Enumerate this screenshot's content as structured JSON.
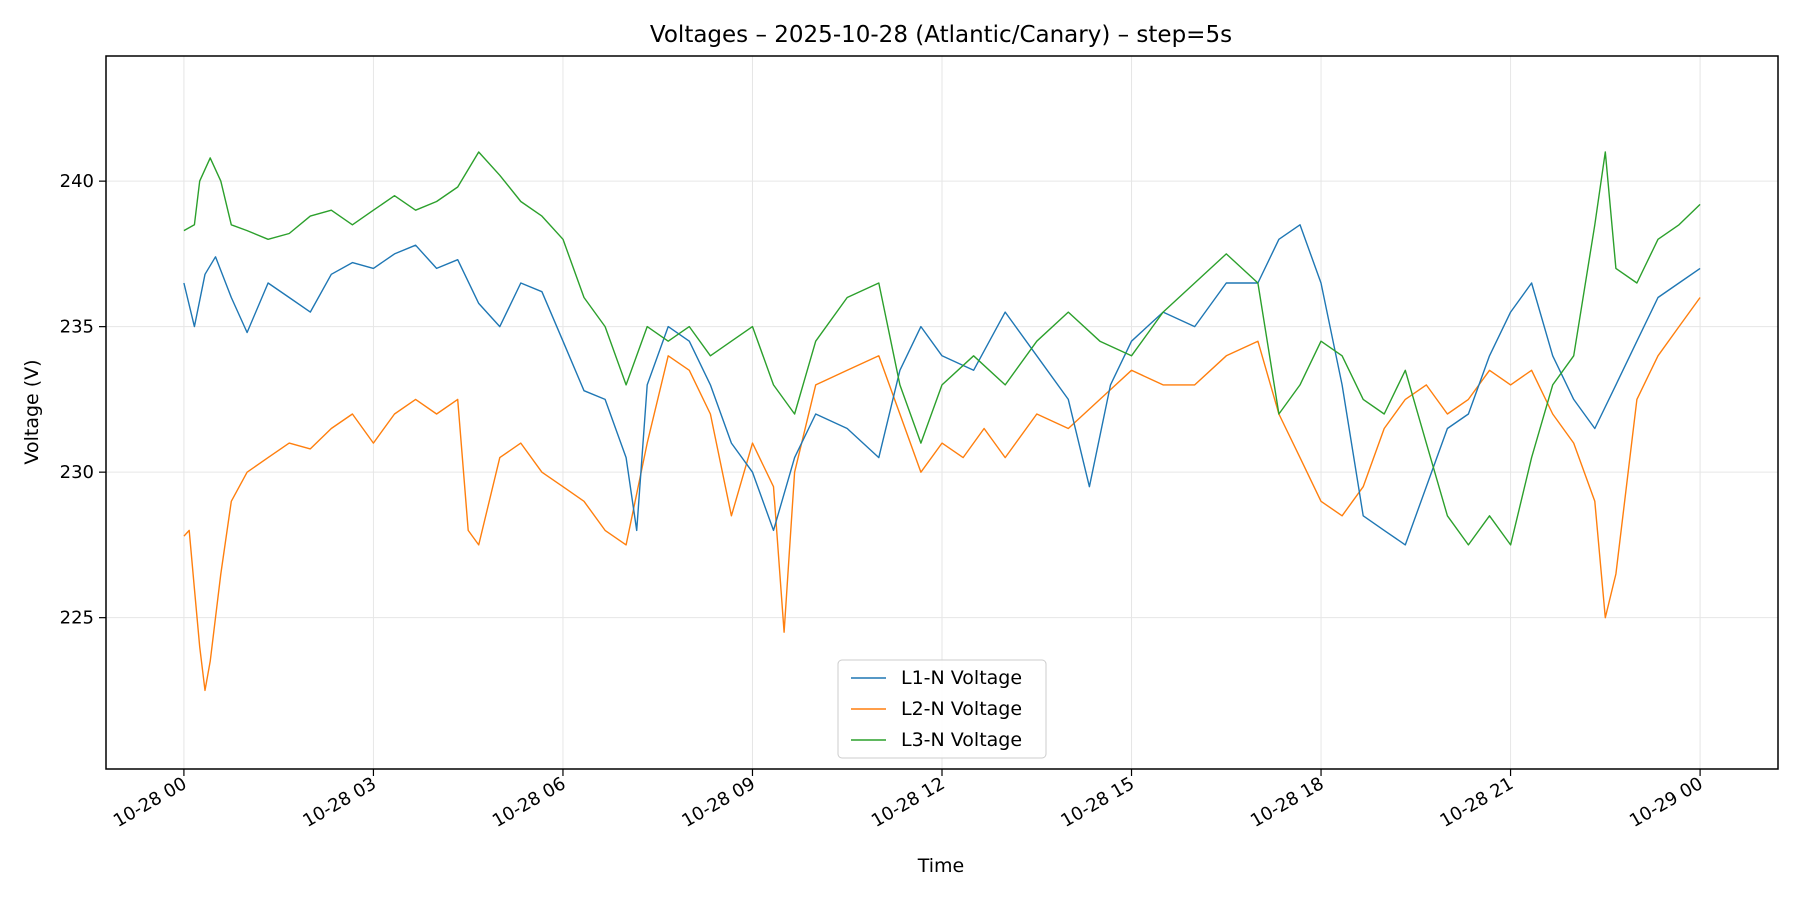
{
  "chart_data": {
    "type": "line",
    "title": "Voltages – 2025-10-28 (Atlantic/Canary) – step=5s",
    "xlabel": "Time",
    "ylabel": "Voltage (V)",
    "xlim": [
      "2025-10-27 22:46",
      "2025-10-29 01:14"
    ],
    "ylim": [
      219.8,
      244.3
    ],
    "grid": true,
    "legend_position": "bottom-center",
    "x_ticks": [
      {
        "t": "2025-10-28 00:00",
        "label": "10-28 00"
      },
      {
        "t": "2025-10-28 03:00",
        "label": "10-28 03"
      },
      {
        "t": "2025-10-28 06:00",
        "label": "10-28 06"
      },
      {
        "t": "2025-10-28 09:00",
        "label": "10-28 09"
      },
      {
        "t": "2025-10-28 12:00",
        "label": "10-28 12"
      },
      {
        "t": "2025-10-28 15:00",
        "label": "10-28 15"
      },
      {
        "t": "2025-10-28 18:00",
        "label": "10-28 18"
      },
      {
        "t": "2025-10-28 21:00",
        "label": "10-28 21"
      },
      {
        "t": "2025-10-29 00:00",
        "label": "10-29 00"
      }
    ],
    "y_ticks": [
      {
        "v": 225,
        "label": "225"
      },
      {
        "v": 230,
        "label": "230"
      },
      {
        "v": 235,
        "label": "235"
      },
      {
        "v": 240,
        "label": "240"
      }
    ],
    "series": [
      {
        "name": "L1-N Voltage",
        "color": "#1f77b4",
        "points": [
          [
            "2025-10-28 00:00",
            236.5
          ],
          [
            "2025-10-28 00:10",
            235.0
          ],
          [
            "2025-10-28 00:20",
            236.8
          ],
          [
            "2025-10-28 00:30",
            237.4
          ],
          [
            "2025-10-28 00:45",
            236.0
          ],
          [
            "2025-10-28 01:00",
            234.8
          ],
          [
            "2025-10-28 01:20",
            236.5
          ],
          [
            "2025-10-28 01:40",
            236.0
          ],
          [
            "2025-10-28 02:00",
            235.5
          ],
          [
            "2025-10-28 02:20",
            236.8
          ],
          [
            "2025-10-28 02:40",
            237.2
          ],
          [
            "2025-10-28 03:00",
            237.0
          ],
          [
            "2025-10-28 03:20",
            237.5
          ],
          [
            "2025-10-28 03:40",
            237.8
          ],
          [
            "2025-10-28 04:00",
            237.0
          ],
          [
            "2025-10-28 04:20",
            237.3
          ],
          [
            "2025-10-28 04:40",
            235.8
          ],
          [
            "2025-10-28 05:00",
            235.0
          ],
          [
            "2025-10-28 05:20",
            236.5
          ],
          [
            "2025-10-28 05:40",
            236.2
          ],
          [
            "2025-10-28 06:00",
            234.5
          ],
          [
            "2025-10-28 06:20",
            232.8
          ],
          [
            "2025-10-28 06:40",
            232.5
          ],
          [
            "2025-10-28 07:00",
            230.5
          ],
          [
            "2025-10-28 07:10",
            228.0
          ],
          [
            "2025-10-28 07:20",
            233.0
          ],
          [
            "2025-10-28 07:40",
            235.0
          ],
          [
            "2025-10-28 08:00",
            234.5
          ],
          [
            "2025-10-28 08:20",
            233.0
          ],
          [
            "2025-10-28 08:40",
            231.0
          ],
          [
            "2025-10-28 09:00",
            230.0
          ],
          [
            "2025-10-28 09:20",
            228.0
          ],
          [
            "2025-10-28 09:40",
            230.5
          ],
          [
            "2025-10-28 10:00",
            232.0
          ],
          [
            "2025-10-28 10:30",
            231.5
          ],
          [
            "2025-10-28 11:00",
            230.5
          ],
          [
            "2025-10-28 11:20",
            233.5
          ],
          [
            "2025-10-28 11:40",
            235.0
          ],
          [
            "2025-10-28 12:00",
            234.0
          ],
          [
            "2025-10-28 12:30",
            233.5
          ],
          [
            "2025-10-28 13:00",
            235.5
          ],
          [
            "2025-10-28 13:30",
            234.0
          ],
          [
            "2025-10-28 14:00",
            232.5
          ],
          [
            "2025-10-28 14:20",
            229.5
          ],
          [
            "2025-10-28 14:40",
            233.0
          ],
          [
            "2025-10-28 15:00",
            234.5
          ],
          [
            "2025-10-28 15:30",
            235.5
          ],
          [
            "2025-10-28 16:00",
            235.0
          ],
          [
            "2025-10-28 16:30",
            236.5
          ],
          [
            "2025-10-28 17:00",
            236.5
          ],
          [
            "2025-10-28 17:20",
            238.0
          ],
          [
            "2025-10-28 17:40",
            238.5
          ],
          [
            "2025-10-28 18:00",
            236.5
          ],
          [
            "2025-10-28 18:20",
            233.0
          ],
          [
            "2025-10-28 18:40",
            228.5
          ],
          [
            "2025-10-28 19:00",
            228.0
          ],
          [
            "2025-10-28 19:20",
            227.5
          ],
          [
            "2025-10-28 19:40",
            229.5
          ],
          [
            "2025-10-28 20:00",
            231.5
          ],
          [
            "2025-10-28 20:20",
            232.0
          ],
          [
            "2025-10-28 20:40",
            234.0
          ],
          [
            "2025-10-28 21:00",
            235.5
          ],
          [
            "2025-10-28 21:20",
            236.5
          ],
          [
            "2025-10-28 21:40",
            234.0
          ],
          [
            "2025-10-28 22:00",
            232.5
          ],
          [
            "2025-10-28 22:20",
            231.5
          ],
          [
            "2025-10-28 22:40",
            233.0
          ],
          [
            "2025-10-28 23:00",
            234.5
          ],
          [
            "2025-10-28 23:20",
            236.0
          ],
          [
            "2025-10-28 23:40",
            236.5
          ],
          [
            "2025-10-29 00:00",
            237.0
          ]
        ]
      },
      {
        "name": "L2-N Voltage",
        "color": "#ff7f0e",
        "points": [
          [
            "2025-10-28 00:00",
            227.8
          ],
          [
            "2025-10-28 00:05",
            228.0
          ],
          [
            "2025-10-28 00:10",
            226.0
          ],
          [
            "2025-10-28 00:15",
            224.0
          ],
          [
            "2025-10-28 00:20",
            222.5
          ],
          [
            "2025-10-28 00:25",
            223.5
          ],
          [
            "2025-10-28 00:35",
            226.5
          ],
          [
            "2025-10-28 00:45",
            229.0
          ],
          [
            "2025-10-28 01:00",
            230.0
          ],
          [
            "2025-10-28 01:20",
            230.5
          ],
          [
            "2025-10-28 01:40",
            231.0
          ],
          [
            "2025-10-28 02:00",
            230.8
          ],
          [
            "2025-10-28 02:20",
            231.5
          ],
          [
            "2025-10-28 02:40",
            232.0
          ],
          [
            "2025-10-28 03:00",
            231.0
          ],
          [
            "2025-10-28 03:20",
            232.0
          ],
          [
            "2025-10-28 03:40",
            232.5
          ],
          [
            "2025-10-28 04:00",
            232.0
          ],
          [
            "2025-10-28 04:20",
            232.5
          ],
          [
            "2025-10-28 04:30",
            228.0
          ],
          [
            "2025-10-28 04:40",
            227.5
          ],
          [
            "2025-10-28 05:00",
            230.5
          ],
          [
            "2025-10-28 05:20",
            231.0
          ],
          [
            "2025-10-28 05:40",
            230.0
          ],
          [
            "2025-10-28 06:00",
            229.5
          ],
          [
            "2025-10-28 06:20",
            229.0
          ],
          [
            "2025-10-28 06:40",
            228.0
          ],
          [
            "2025-10-28 07:00",
            227.5
          ],
          [
            "2025-10-28 07:20",
            231.0
          ],
          [
            "2025-10-28 07:40",
            234.0
          ],
          [
            "2025-10-28 08:00",
            233.5
          ],
          [
            "2025-10-28 08:20",
            232.0
          ],
          [
            "2025-10-28 08:40",
            228.5
          ],
          [
            "2025-10-28 09:00",
            231.0
          ],
          [
            "2025-10-28 09:20",
            229.5
          ],
          [
            "2025-10-28 09:30",
            224.5
          ],
          [
            "2025-10-28 09:40",
            230.0
          ],
          [
            "2025-10-28 10:00",
            233.0
          ],
          [
            "2025-10-28 10:30",
            233.5
          ],
          [
            "2025-10-28 11:00",
            234.0
          ],
          [
            "2025-10-28 11:20",
            232.0
          ],
          [
            "2025-10-28 11:40",
            230.0
          ],
          [
            "2025-10-28 12:00",
            231.0
          ],
          [
            "2025-10-28 12:20",
            230.5
          ],
          [
            "2025-10-28 12:40",
            231.5
          ],
          [
            "2025-10-28 13:00",
            230.5
          ],
          [
            "2025-10-28 13:30",
            232.0
          ],
          [
            "2025-10-28 14:00",
            231.5
          ],
          [
            "2025-10-28 14:30",
            232.5
          ],
          [
            "2025-10-28 15:00",
            233.5
          ],
          [
            "2025-10-28 15:30",
            233.0
          ],
          [
            "2025-10-28 16:00",
            233.0
          ],
          [
            "2025-10-28 16:30",
            234.0
          ],
          [
            "2025-10-28 17:00",
            234.5
          ],
          [
            "2025-10-28 17:20",
            232.0
          ],
          [
            "2025-10-28 17:40",
            230.5
          ],
          [
            "2025-10-28 18:00",
            229.0
          ],
          [
            "2025-10-28 18:20",
            228.5
          ],
          [
            "2025-10-28 18:40",
            229.5
          ],
          [
            "2025-10-28 19:00",
            231.5
          ],
          [
            "2025-10-28 19:20",
            232.5
          ],
          [
            "2025-10-28 19:40",
            233.0
          ],
          [
            "2025-10-28 20:00",
            232.0
          ],
          [
            "2025-10-28 20:20",
            232.5
          ],
          [
            "2025-10-28 20:40",
            233.5
          ],
          [
            "2025-10-28 21:00",
            233.0
          ],
          [
            "2025-10-28 21:20",
            233.5
          ],
          [
            "2025-10-28 21:40",
            232.0
          ],
          [
            "2025-10-28 22:00",
            231.0
          ],
          [
            "2025-10-28 22:20",
            229.0
          ],
          [
            "2025-10-28 22:30",
            225.0
          ],
          [
            "2025-10-28 22:40",
            226.5
          ],
          [
            "2025-10-28 23:00",
            232.5
          ],
          [
            "2025-10-28 23:20",
            234.0
          ],
          [
            "2025-10-28 23:40",
            235.0
          ],
          [
            "2025-10-29 00:00",
            236.0
          ]
        ]
      },
      {
        "name": "L3-N Voltage",
        "color": "#2ca02c",
        "points": [
          [
            "2025-10-28 00:00",
            238.3
          ],
          [
            "2025-10-28 00:10",
            238.5
          ],
          [
            "2025-10-28 00:15",
            240.0
          ],
          [
            "2025-10-28 00:25",
            240.8
          ],
          [
            "2025-10-28 00:35",
            240.0
          ],
          [
            "2025-10-28 00:45",
            238.5
          ],
          [
            "2025-10-28 01:00",
            238.3
          ],
          [
            "2025-10-28 01:20",
            238.0
          ],
          [
            "2025-10-28 01:40",
            238.2
          ],
          [
            "2025-10-28 02:00",
            238.8
          ],
          [
            "2025-10-28 02:20",
            239.0
          ],
          [
            "2025-10-28 02:40",
            238.5
          ],
          [
            "2025-10-28 03:00",
            239.0
          ],
          [
            "2025-10-28 03:20",
            239.5
          ],
          [
            "2025-10-28 03:40",
            239.0
          ],
          [
            "2025-10-28 04:00",
            239.3
          ],
          [
            "2025-10-28 04:20",
            239.8
          ],
          [
            "2025-10-28 04:40",
            241.0
          ],
          [
            "2025-10-28 05:00",
            240.2
          ],
          [
            "2025-10-28 05:20",
            239.3
          ],
          [
            "2025-10-28 05:40",
            238.8
          ],
          [
            "2025-10-28 06:00",
            238.0
          ],
          [
            "2025-10-28 06:20",
            236.0
          ],
          [
            "2025-10-28 06:40",
            235.0
          ],
          [
            "2025-10-28 07:00",
            233.0
          ],
          [
            "2025-10-28 07:20",
            235.0
          ],
          [
            "2025-10-28 07:40",
            234.5
          ],
          [
            "2025-10-28 08:00",
            235.0
          ],
          [
            "2025-10-28 08:20",
            234.0
          ],
          [
            "2025-10-28 08:40",
            234.5
          ],
          [
            "2025-10-28 09:00",
            235.0
          ],
          [
            "2025-10-28 09:20",
            233.0
          ],
          [
            "2025-10-28 09:40",
            232.0
          ],
          [
            "2025-10-28 10:00",
            234.5
          ],
          [
            "2025-10-28 10:30",
            236.0
          ],
          [
            "2025-10-28 11:00",
            236.5
          ],
          [
            "2025-10-28 11:20",
            233.0
          ],
          [
            "2025-10-28 11:40",
            231.0
          ],
          [
            "2025-10-28 12:00",
            233.0
          ],
          [
            "2025-10-28 12:30",
            234.0
          ],
          [
            "2025-10-28 13:00",
            233.0
          ],
          [
            "2025-10-28 13:30",
            234.5
          ],
          [
            "2025-10-28 14:00",
            235.5
          ],
          [
            "2025-10-28 14:30",
            234.5
          ],
          [
            "2025-10-28 15:00",
            234.0
          ],
          [
            "2025-10-28 15:30",
            235.5
          ],
          [
            "2025-10-28 16:00",
            236.5
          ],
          [
            "2025-10-28 16:30",
            237.5
          ],
          [
            "2025-10-28 17:00",
            236.5
          ],
          [
            "2025-10-28 17:20",
            232.0
          ],
          [
            "2025-10-28 17:40",
            233.0
          ],
          [
            "2025-10-28 18:00",
            234.5
          ],
          [
            "2025-10-28 18:20",
            234.0
          ],
          [
            "2025-10-28 18:40",
            232.5
          ],
          [
            "2025-10-28 19:00",
            232.0
          ],
          [
            "2025-10-28 19:20",
            233.5
          ],
          [
            "2025-10-28 19:40",
            231.0
          ],
          [
            "2025-10-28 20:00",
            228.5
          ],
          [
            "2025-10-28 20:20",
            227.5
          ],
          [
            "2025-10-28 20:40",
            228.5
          ],
          [
            "2025-10-28 21:00",
            227.5
          ],
          [
            "2025-10-28 21:20",
            230.5
          ],
          [
            "2025-10-28 21:40",
            233.0
          ],
          [
            "2025-10-28 22:00",
            234.0
          ],
          [
            "2025-10-28 22:20",
            238.5
          ],
          [
            "2025-10-28 22:30",
            241.0
          ],
          [
            "2025-10-28 22:40",
            237.0
          ],
          [
            "2025-10-28 23:00",
            236.5
          ],
          [
            "2025-10-28 23:20",
            238.0
          ],
          [
            "2025-10-28 23:40",
            238.5
          ],
          [
            "2025-10-29 00:00",
            239.2
          ]
        ]
      }
    ]
  }
}
